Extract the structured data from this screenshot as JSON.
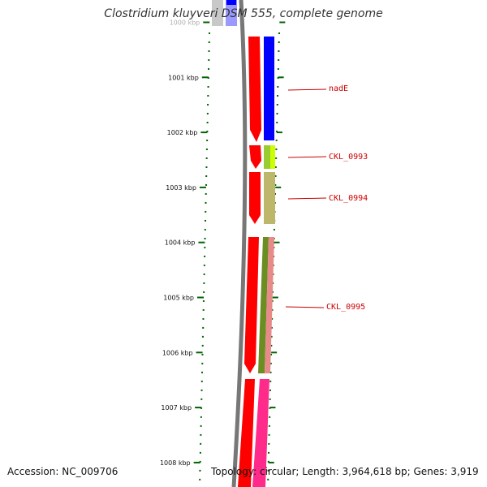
{
  "header": {
    "title": "Clostridium kluyveri DSM 555, complete genome"
  },
  "footer": {
    "accession": "Accession: NC_009706",
    "topology": "Topology: circular; Length: 3,964,618 bp; Genes: 3,919"
  },
  "colors": {
    "tick": "#006400",
    "backbone": "#777777",
    "forward_strand": "#ff0000",
    "label": "#cc0000",
    "cog_blue": "#0000ff",
    "cog_green": "#99cc33",
    "cog_lime": "#ccff00",
    "cog_khaki": "#bdb76b",
    "cog_olive": "#6b8e23",
    "cog_salmon": "#e88a8a",
    "cog_pink": "#ff2a8a"
  },
  "scale_ticks": [
    {
      "kbp": 1000,
      "label": "1000 kbp"
    },
    {
      "kbp": 1001,
      "label": "1001 kbp"
    },
    {
      "kbp": 1002,
      "label": "1002 kbp"
    },
    {
      "kbp": 1003,
      "label": "1003 kbp"
    },
    {
      "kbp": 1004,
      "label": "1004 kbp"
    },
    {
      "kbp": 1005,
      "label": "1005 kbp"
    },
    {
      "kbp": 1006,
      "label": "1006 kbp"
    },
    {
      "kbp": 1007,
      "label": "1007 kbp"
    },
    {
      "kbp": 1008,
      "label": "1008 kbp"
    }
  ],
  "gene_labels": [
    "nadE",
    "CKL_0993",
    "CKL_0994",
    "CKL_0995"
  ]
}
